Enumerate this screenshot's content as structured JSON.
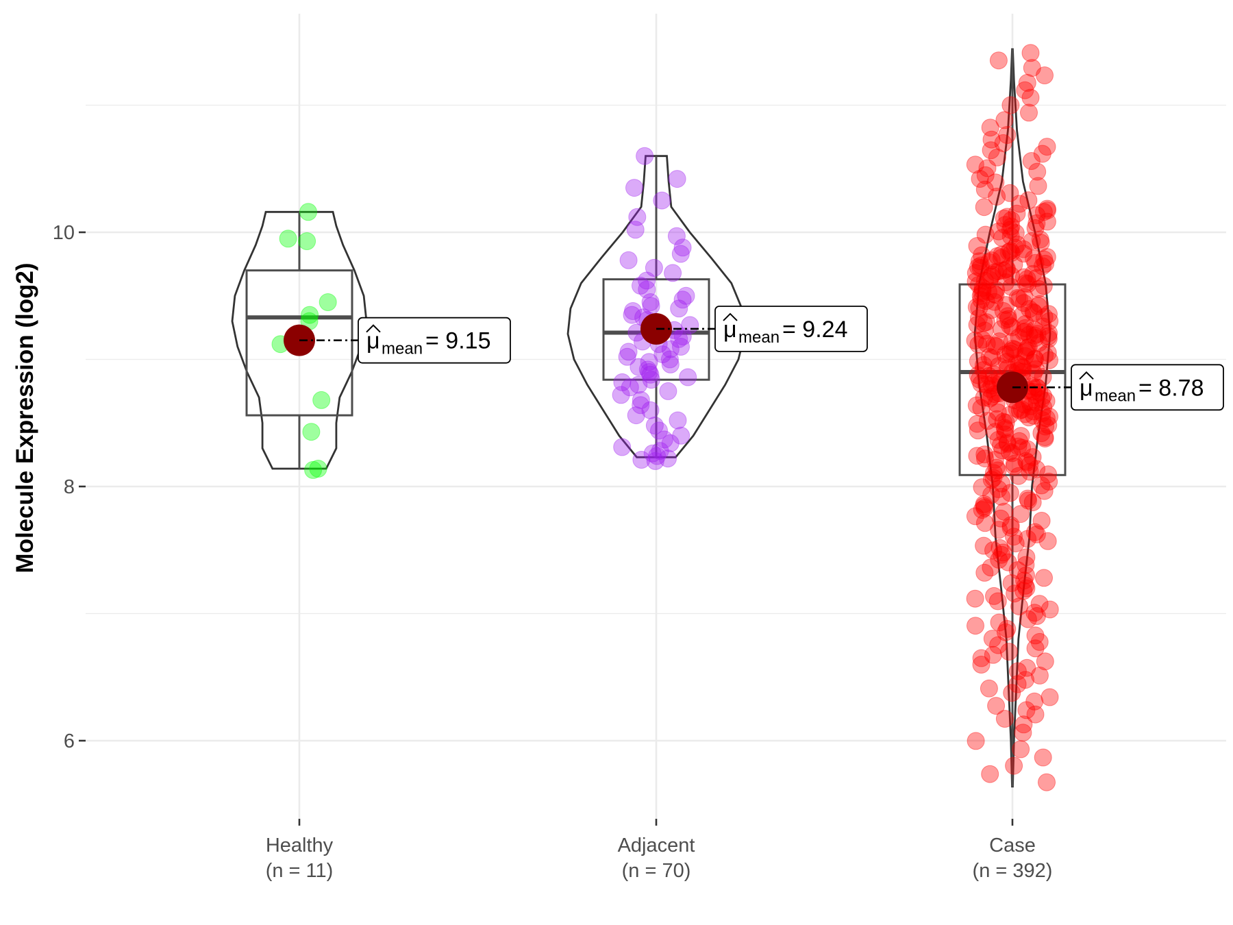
{
  "chart_data": {
    "type": "violin",
    "title": "",
    "xlabel": "",
    "ylabel": "Molecule Expression (log2)",
    "ylim": [
      5.3,
      11.7
    ],
    "yticks": [
      6,
      8,
      10
    ],
    "grid": true,
    "groups": [
      {
        "name": "Healthy",
        "n_label": "(n = 11)",
        "n": 11,
        "color": "#00ff00",
        "mean": 9.15,
        "mean_label_value": "9.15",
        "box": {
          "q1": 8.56,
          "median": 9.33,
          "q3": 9.7,
          "whisker_low": 8.14,
          "whisker_high": 10.16
        },
        "violin": [
          [
            8.14,
            0.4
          ],
          [
            8.3,
            0.55
          ],
          [
            8.5,
            0.55
          ],
          [
            8.7,
            0.6
          ],
          [
            8.9,
            0.78
          ],
          [
            9.1,
            0.92
          ],
          [
            9.3,
            1.0
          ],
          [
            9.5,
            0.96
          ],
          [
            9.7,
            0.82
          ],
          [
            9.9,
            0.65
          ],
          [
            10.05,
            0.55
          ],
          [
            10.16,
            0.5
          ]
        ],
        "points": [
          10.16,
          9.95,
          9.93,
          9.45,
          9.35,
          9.3,
          9.12,
          8.68,
          8.43,
          8.14,
          8.13
        ]
      },
      {
        "name": "Adjacent",
        "n_label": "(n = 70)",
        "n": 70,
        "color": "#a020f0",
        "mean": 9.24,
        "mean_label_value": "9.24",
        "box": {
          "q1": 8.84,
          "median": 9.21,
          "q3": 9.63,
          "whisker_low": 8.23,
          "whisker_high": 10.6
        },
        "violin": [
          [
            8.23,
            0.22
          ],
          [
            8.4,
            0.42
          ],
          [
            8.6,
            0.6
          ],
          [
            8.8,
            0.78
          ],
          [
            9.0,
            0.93
          ],
          [
            9.2,
            1.0
          ],
          [
            9.4,
            0.97
          ],
          [
            9.6,
            0.85
          ],
          [
            9.8,
            0.62
          ],
          [
            10.0,
            0.38
          ],
          [
            10.2,
            0.17
          ],
          [
            10.4,
            0.14
          ],
          [
            10.6,
            0.12
          ]
        ],
        "points": [
          10.6,
          10.42,
          10.35,
          10.25,
          10.12,
          10.02,
          9.97,
          9.88,
          9.83,
          9.78,
          9.72,
          9.68,
          9.62,
          9.58,
          9.55,
          9.5,
          9.47,
          9.45,
          9.42,
          9.4,
          9.38,
          9.35,
          9.33,
          9.31,
          9.29,
          9.27,
          9.25,
          9.23,
          9.21,
          9.2,
          9.18,
          9.16,
          9.14,
          9.12,
          9.1,
          9.08,
          9.06,
          9.04,
          9.02,
          9.0,
          8.98,
          8.96,
          8.94,
          8.92,
          8.9,
          8.88,
          8.86,
          8.84,
          8.82,
          8.8,
          8.78,
          8.75,
          8.72,
          8.68,
          8.64,
          8.6,
          8.56,
          8.52,
          8.48,
          8.44,
          8.4,
          8.37,
          8.34,
          8.31,
          8.28,
          8.26,
          8.24,
          8.22,
          8.21,
          8.2
        ]
      },
      {
        "name": "Case",
        "n_label": "(n = 392)",
        "n": 392,
        "color": "#ff0000",
        "mean": 8.78,
        "mean_label_value": "8.78",
        "box": {
          "q1": 8.09,
          "median": 8.9,
          "q3": 9.59,
          "whisker_low": 5.64,
          "whisker_high": 11.44
        },
        "violin": [
          [
            5.64,
            0.01
          ],
          [
            6.0,
            0.04
          ],
          [
            6.4,
            0.1
          ],
          [
            6.8,
            0.16
          ],
          [
            7.2,
            0.3
          ],
          [
            7.6,
            0.45
          ],
          [
            8.0,
            0.52
          ],
          [
            8.4,
            0.68
          ],
          [
            8.8,
            0.88
          ],
          [
            9.2,
            1.0
          ],
          [
            9.6,
            0.88
          ],
          [
            10.0,
            0.6
          ],
          [
            10.4,
            0.28
          ],
          [
            10.8,
            0.12
          ],
          [
            11.2,
            0.04
          ],
          [
            11.44,
            0.01
          ]
        ],
        "quantiles": [
          [
            0.0,
            5.64
          ],
          [
            0.02,
            6.15
          ],
          [
            0.05,
            6.55
          ],
          [
            0.1,
            7.05
          ],
          [
            0.15,
            7.45
          ],
          [
            0.2,
            7.8
          ],
          [
            0.25,
            8.09
          ],
          [
            0.35,
            8.5
          ],
          [
            0.5,
            8.9
          ],
          [
            0.65,
            9.28
          ],
          [
            0.75,
            9.59
          ],
          [
            0.85,
            9.85
          ],
          [
            0.92,
            10.2
          ],
          [
            0.97,
            10.75
          ],
          [
            1.0,
            11.44
          ]
        ]
      }
    ]
  }
}
